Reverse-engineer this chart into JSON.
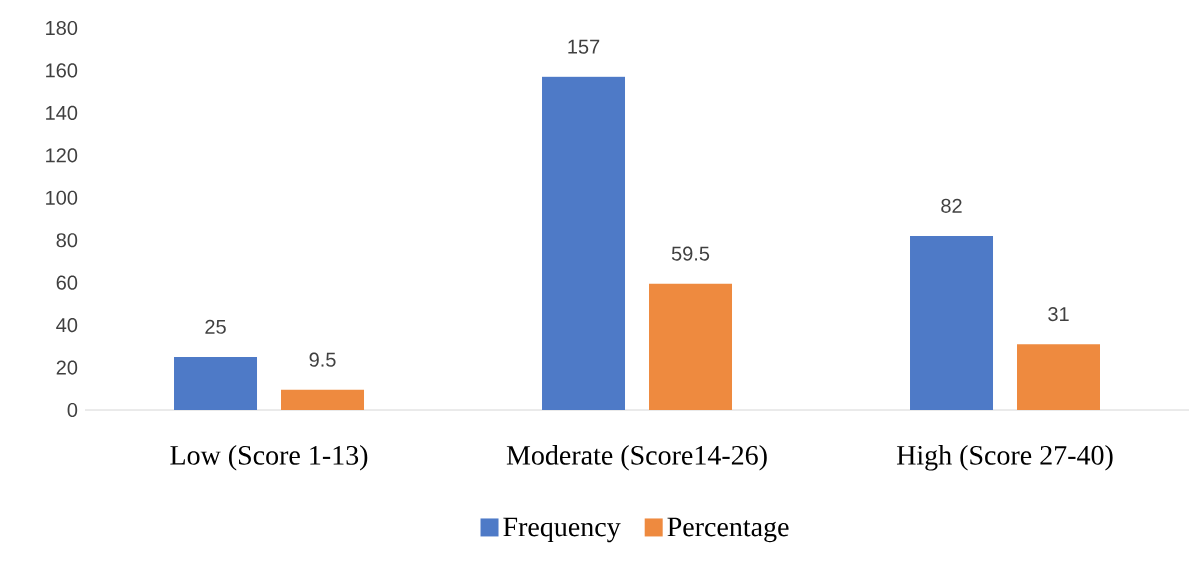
{
  "chart_data": {
    "type": "bar",
    "categories": [
      "Low (Score 1-13)",
      "Moderate (Score14-26)",
      "High (Score 27-40)"
    ],
    "series": [
      {
        "name": "Frequency",
        "color": "#4e7ac7",
        "values": [
          25,
          157,
          82
        ]
      },
      {
        "name": "Percentage",
        "color": "#ee8a3f",
        "values": [
          9.5,
          59.5,
          31
        ]
      }
    ],
    "ylim": [
      0,
      180
    ],
    "yticks": [
      0,
      20,
      40,
      60,
      80,
      100,
      120,
      140,
      160,
      180
    ],
    "grid": false,
    "legend": "bottom",
    "data_labels": true
  }
}
